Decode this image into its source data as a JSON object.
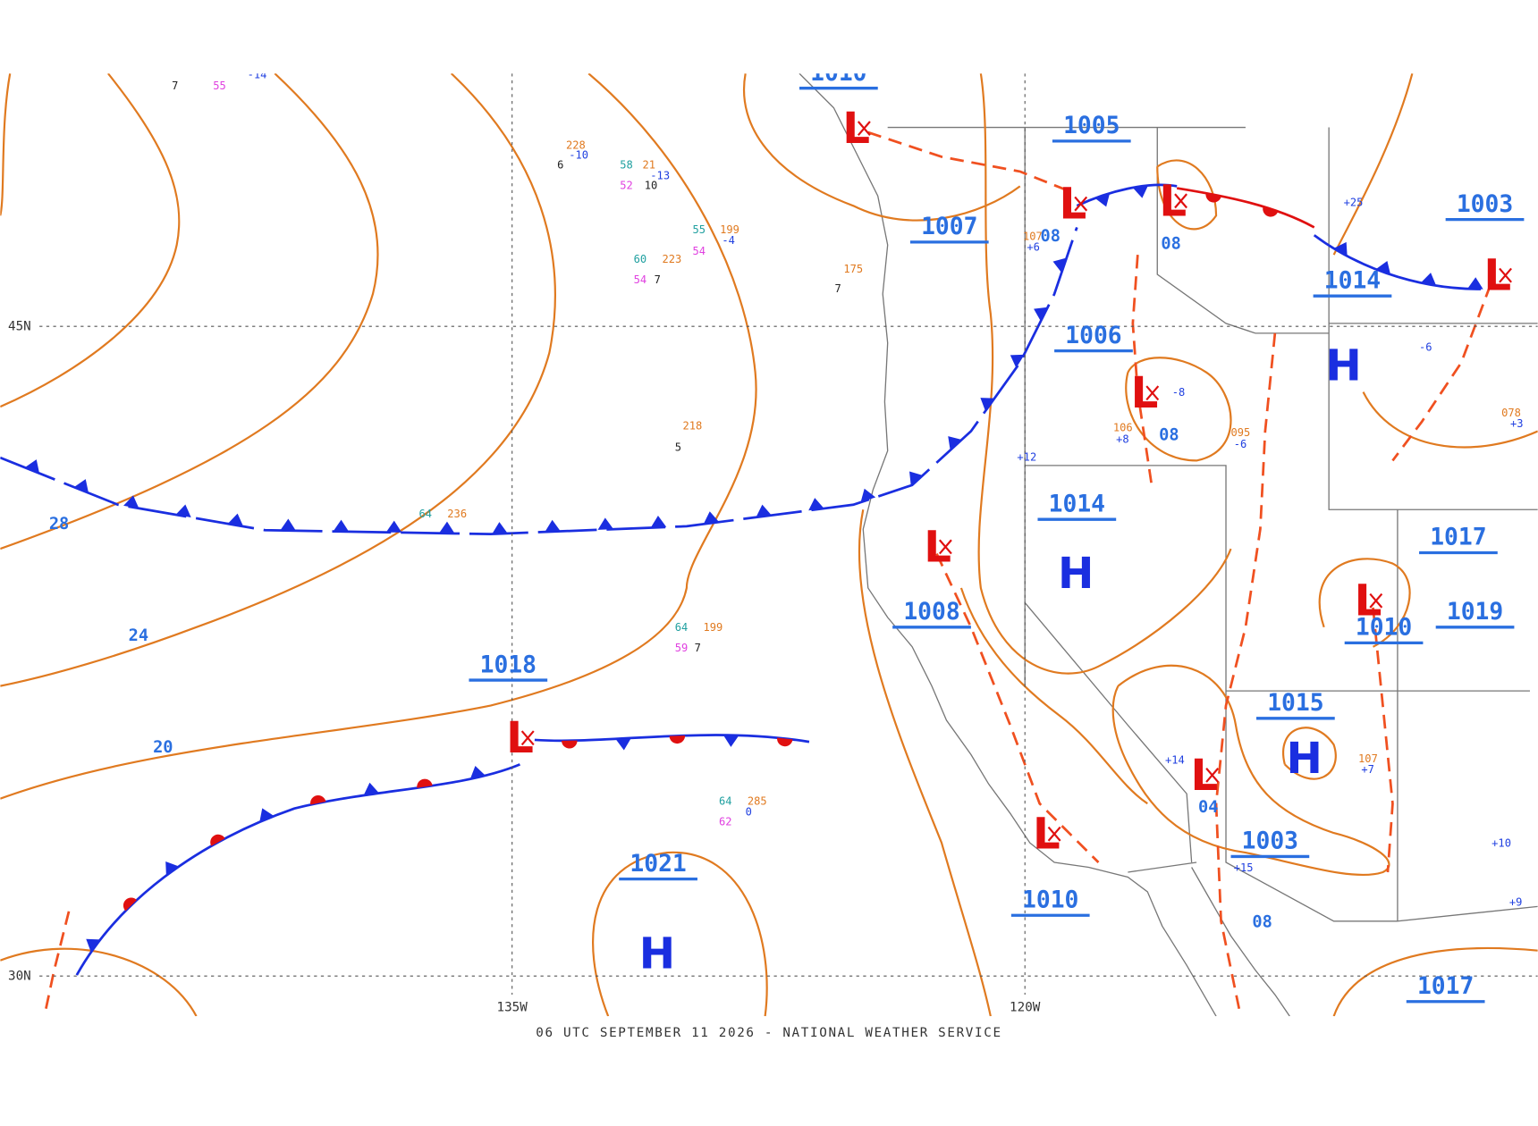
{
  "footer": "06 UTC SEPTEMBER 11 2026 - NATIONAL WEATHER SERVICE",
  "grid_labels": {
    "lat": [
      "45N",
      "30N"
    ],
    "lon": [
      "135W",
      "120W"
    ]
  },
  "pressure_labels": [
    "1018",
    "1021",
    "1007",
    "1005",
    "1006",
    "1014",
    "1008",
    "1010",
    "1003",
    "1015",
    "1017",
    "1019",
    "1010",
    "1014",
    "1003",
    "1017",
    "1010"
  ],
  "isobar_labels": [
    "28",
    "24",
    "20",
    "08",
    "08",
    "08",
    "08",
    "04"
  ],
  "centers": [
    "H",
    "H",
    "H",
    "H",
    "L",
    "L",
    "L",
    "L",
    "L",
    "L",
    "L",
    "L",
    "L",
    "L"
  ],
  "station_labels": [
    "228",
    "-10",
    "6",
    "21",
    "-13",
    "10",
    "58",
    "52",
    "199",
    "55",
    "-4",
    "54",
    "223",
    "60",
    "54",
    "7",
    "175",
    "7",
    "218",
    "5",
    "236",
    "64",
    "199",
    "64",
    "59",
    "7",
    "285",
    "64",
    "0",
    "62",
    "7",
    "55",
    "-14",
    "+6",
    "107",
    "-8",
    "095",
    "-6",
    "+12",
    "+8",
    "106",
    "+25",
    "+15",
    "+14",
    "+7",
    "107",
    "+10",
    "+9",
    "-6",
    "+3",
    "078"
  ]
}
